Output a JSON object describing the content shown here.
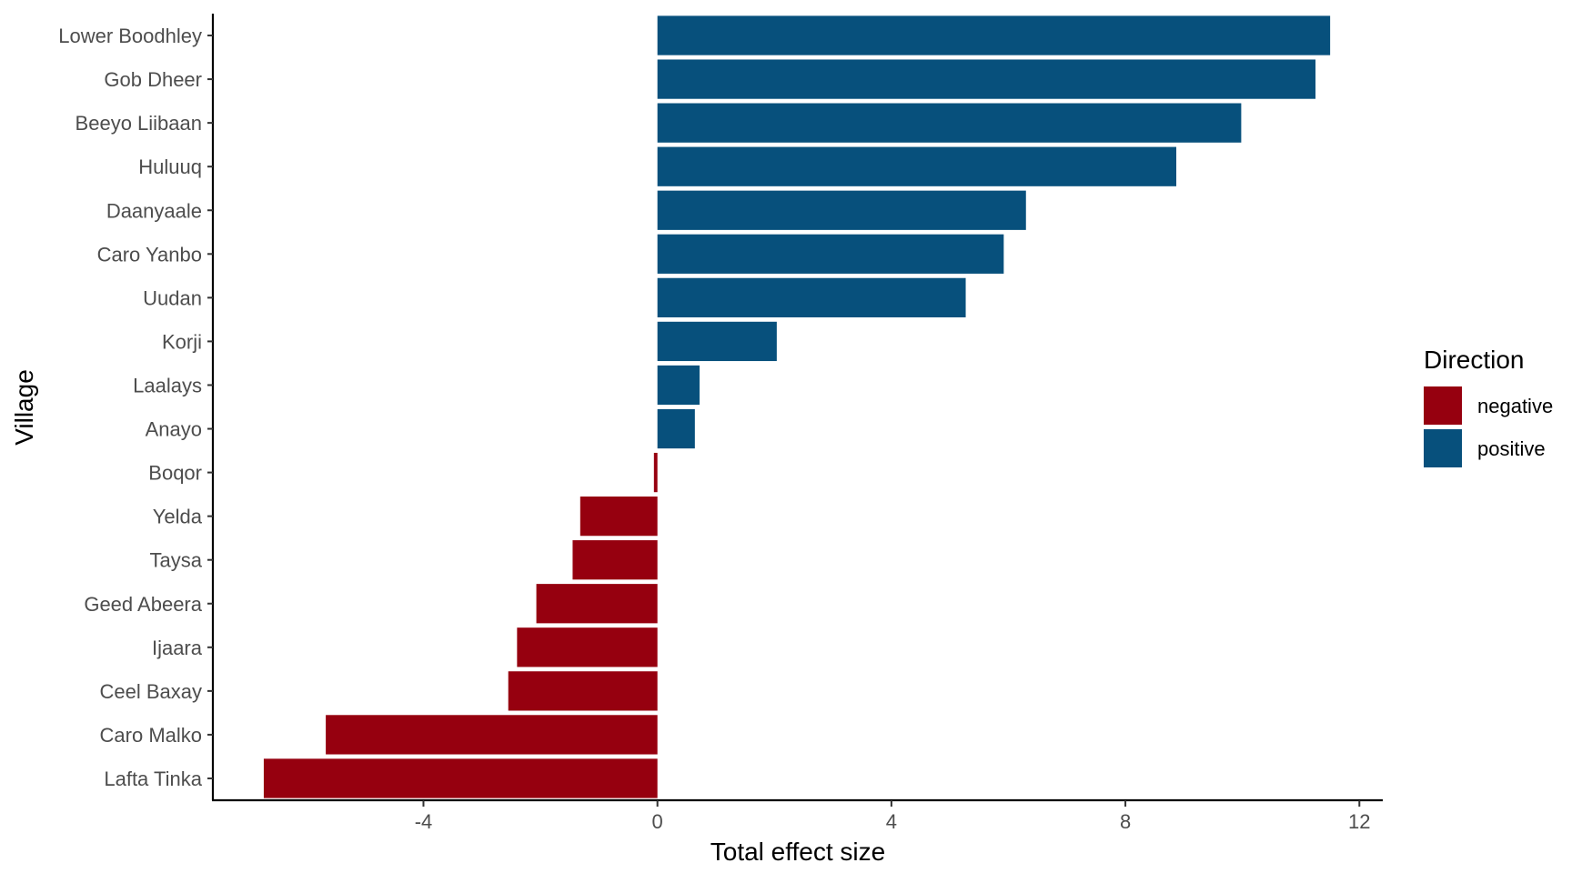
{
  "chart_data": {
    "type": "bar",
    "orientation": "horizontal",
    "xlabel": "Total effect size",
    "ylabel": "Village",
    "xlim": [
      -7.6,
      12.4
    ],
    "xticks": [
      -4,
      0,
      4,
      8,
      12
    ],
    "xtick_labels": [
      "-4",
      "0",
      "4",
      "8",
      "12"
    ],
    "categories": [
      "Lower Boodhley",
      "Gob Dheer",
      "Beeyo Liibaan",
      "Huluuq",
      "Daanyaale",
      "Caro Yanbo",
      "Uudan",
      "Korji",
      "Laalays",
      "Anayo",
      "Boqor",
      "Yelda",
      "Taysa",
      "Geed Abeera",
      "Ijaara",
      "Ceel Baxay",
      "Caro Malko",
      "Lafta Tinka"
    ],
    "values": [
      11.5,
      11.25,
      9.98,
      8.87,
      6.3,
      5.92,
      5.27,
      2.04,
      0.72,
      0.64,
      -0.06,
      -1.32,
      -1.45,
      -2.07,
      -2.4,
      -2.55,
      -5.67,
      -6.73
    ],
    "direction": [
      "positive",
      "positive",
      "positive",
      "positive",
      "positive",
      "positive",
      "positive",
      "positive",
      "positive",
      "positive",
      "negative",
      "negative",
      "negative",
      "negative",
      "negative",
      "negative",
      "negative",
      "negative"
    ],
    "grid": false,
    "legend": {
      "title": "Direction",
      "position": "right",
      "entries": [
        {
          "label": "negative",
          "color": "#96000f"
        },
        {
          "label": "positive",
          "color": "#07507c"
        }
      ]
    }
  }
}
